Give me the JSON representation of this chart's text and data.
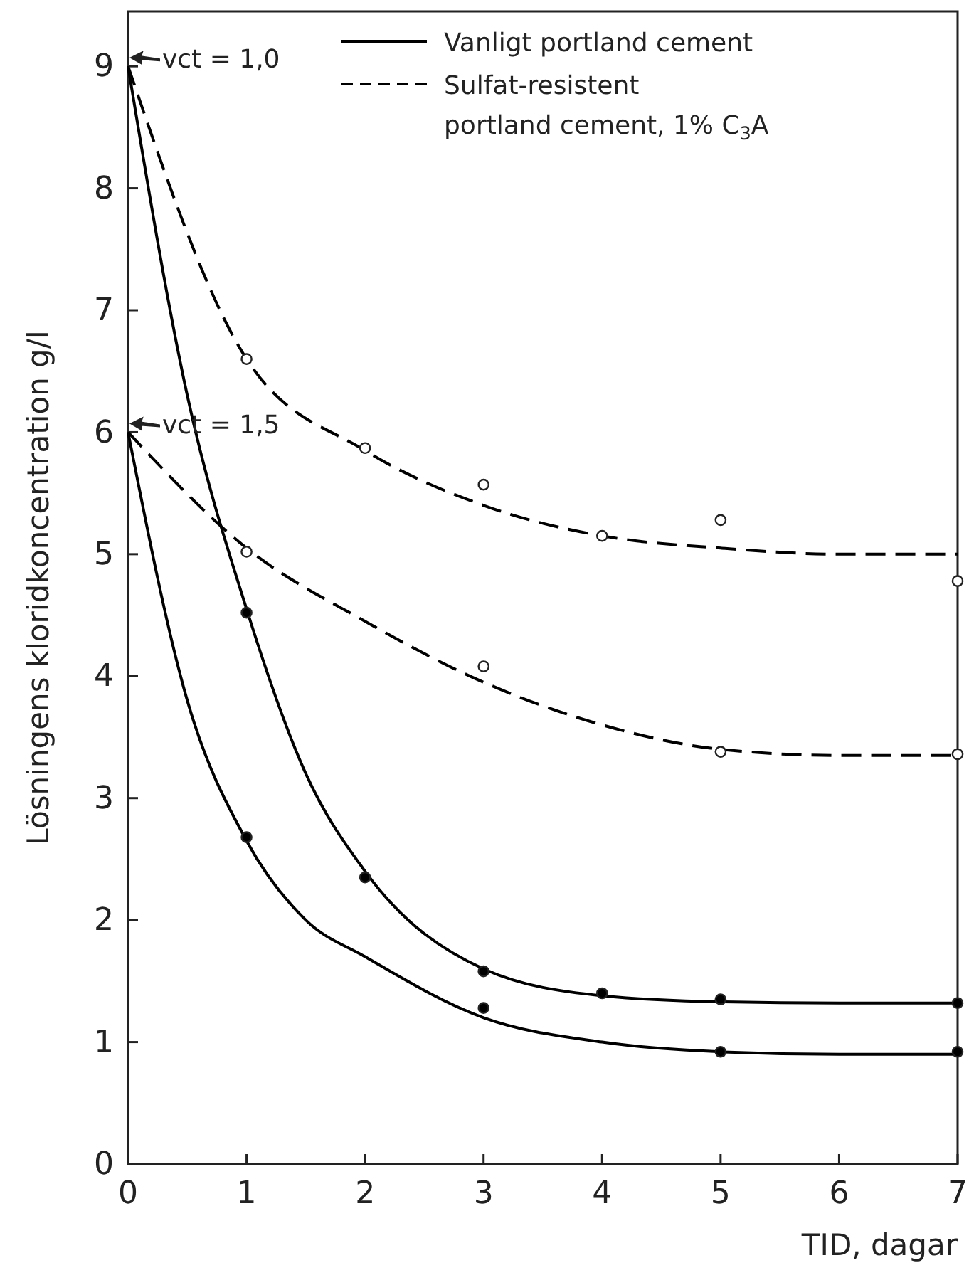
{
  "chart_data": {
    "type": "line",
    "xlabel": "TID, dagar",
    "ylabel": "Lösningens kloridkoncentration g/l",
    "xlim": [
      0,
      7
    ],
    "ylim": [
      0,
      9.45
    ],
    "xticks": [
      0,
      1,
      2,
      3,
      4,
      5,
      6,
      7
    ],
    "yticks": [
      0,
      1,
      2,
      3,
      4,
      5,
      6,
      7,
      8,
      9
    ],
    "grid": false,
    "legend": "top right",
    "series": [
      {
        "name": "Vanligt portland cement",
        "color": "#000000",
        "line_style": "solid",
        "x": [
          0,
          0.5,
          1,
          1.5,
          2,
          3,
          4,
          5,
          6,
          7
        ],
        "values": [
          9,
          6.3,
          4.55,
          3.2,
          2.4,
          1.6,
          1.38,
          1.33,
          1.32,
          1.32
        ]
      },
      {
        "color": "#000000",
        "line_style": "solid",
        "x": [
          0,
          0.5,
          1,
          1.5,
          2,
          3,
          4,
          5,
          6,
          7
        ],
        "values": [
          6,
          3.8,
          2.65,
          2.0,
          1.7,
          1.2,
          1.0,
          0.92,
          0.9,
          0.9
        ]
      },
      {
        "name": "Sulfat-resistent portland cement, 1% C$_{3}$A",
        "color": "#000000",
        "line_style": "dashed",
        "x": [
          0,
          1,
          2,
          3,
          4,
          5,
          6,
          7
        ],
        "values": [
          9,
          6.6,
          5.85,
          5.4,
          5.15,
          5.05,
          5.0,
          5.0
        ]
      },
      {
        "color": "#000000",
        "line_style": "dashed",
        "x": [
          0,
          1,
          2,
          3,
          4,
          5,
          6,
          7
        ],
        "values": [
          6,
          5.05,
          4.45,
          3.95,
          3.6,
          3.4,
          3.35,
          3.35
        ]
      },
      {
        "type": "scatter",
        "marker": "circle",
        "color": "#000000",
        "x": [
          1,
          2,
          3,
          4,
          5,
          7
        ],
        "values": [
          4.52,
          2.35,
          1.58,
          1.4,
          1.35,
          1.32
        ]
      },
      {
        "type": "scatter",
        "marker": "circle",
        "color": "#000000",
        "x": [
          1,
          3,
          5,
          7
        ],
        "values": [
          2.68,
          1.28,
          0.92,
          0.92
        ]
      },
      {
        "type": "scatter",
        "marker": "circle",
        "color": "#ffffff",
        "x": [
          1,
          2,
          3,
          4,
          5,
          7
        ],
        "values": [
          6.6,
          5.87,
          5.57,
          5.15,
          5.28,
          4.78
        ]
      },
      {
        "type": "scatter",
        "marker": "circle",
        "color": "#ffffff",
        "x": [
          1,
          3,
          5,
          7
        ],
        "values": [
          5.02,
          4.08,
          3.38,
          3.36
        ]
      }
    ],
    "annotations": [
      {
        "text": "vct = 1,0",
        "x": 0,
        "y": 9
      },
      {
        "text": "vct = 1,5",
        "x": 0,
        "y": 6
      }
    ]
  }
}
